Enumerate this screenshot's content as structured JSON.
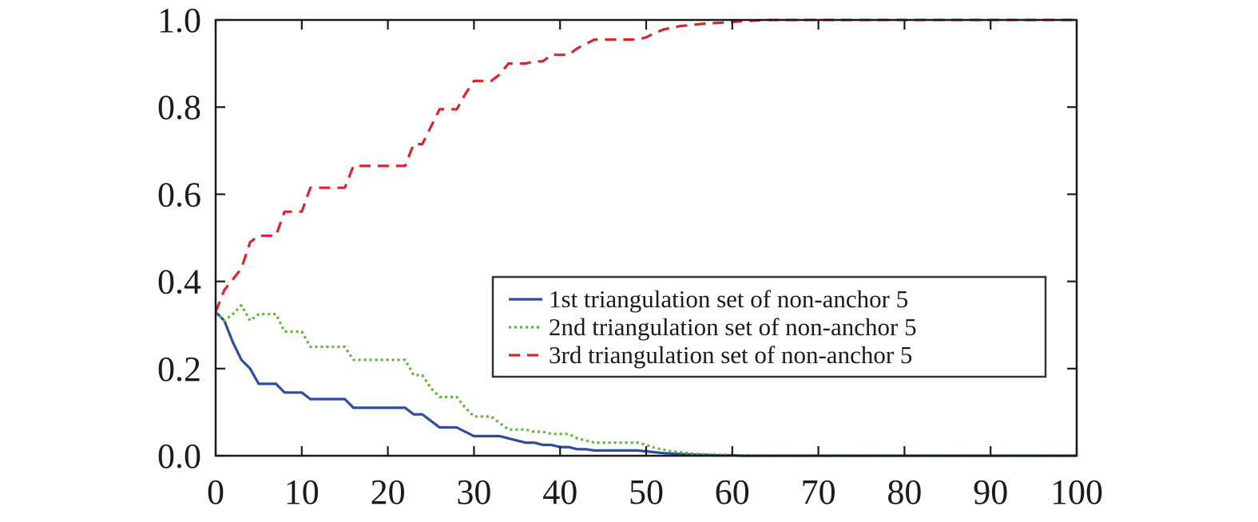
{
  "chart_data": {
    "type": "line",
    "title": "",
    "xlabel": "",
    "ylabel": "",
    "xlim": [
      0,
      100
    ],
    "ylim": [
      0,
      1.0
    ],
    "xticks": [
      0,
      10,
      20,
      30,
      40,
      50,
      60,
      70,
      80,
      90,
      100
    ],
    "yticks": [
      0.0,
      0.2,
      0.4,
      0.6,
      0.8,
      1.0
    ],
    "x_tick_labels": [
      "0",
      "10",
      "20",
      "30",
      "40",
      "50",
      "60",
      "70",
      "80",
      "90",
      "100"
    ],
    "y_tick_labels": [
      "0.0",
      "0.2",
      "0.4",
      "0.6",
      "0.8",
      "1.0"
    ],
    "grid": false,
    "legend_position": "center-right",
    "series": [
      {
        "name": "1st triangulation set of non-anchor 5",
        "color": "#2b4ea0",
        "style": "solid",
        "x": [
          0,
          1,
          2,
          3,
          4,
          5,
          6,
          7,
          8,
          9,
          10,
          11,
          12,
          13,
          14,
          15,
          16,
          17,
          18,
          19,
          20,
          21,
          22,
          23,
          24,
          25,
          26,
          27,
          28,
          29,
          30,
          31,
          32,
          33,
          34,
          35,
          36,
          37,
          38,
          39,
          40,
          41,
          42,
          43,
          44,
          45,
          46,
          47,
          48,
          49,
          50,
          51,
          52,
          53,
          54,
          55,
          56,
          57,
          58,
          59,
          60,
          61,
          62,
          63,
          64,
          65,
          70,
          80,
          90,
          100
        ],
        "y": [
          0.33,
          0.31,
          0.26,
          0.22,
          0.2,
          0.165,
          0.165,
          0.165,
          0.145,
          0.145,
          0.145,
          0.13,
          0.13,
          0.13,
          0.13,
          0.13,
          0.11,
          0.11,
          0.11,
          0.11,
          0.11,
          0.11,
          0.11,
          0.095,
          0.095,
          0.08,
          0.065,
          0.065,
          0.065,
          0.055,
          0.045,
          0.045,
          0.045,
          0.045,
          0.04,
          0.035,
          0.03,
          0.03,
          0.025,
          0.025,
          0.02,
          0.02,
          0.015,
          0.015,
          0.012,
          0.012,
          0.012,
          0.012,
          0.012,
          0.012,
          0.01,
          0.008,
          0.006,
          0.005,
          0.004,
          0.003,
          0.002,
          0.002,
          0.001,
          0.001,
          0.001,
          0.0,
          0.0,
          0.0,
          0.0,
          0.0,
          0.0,
          0.0,
          0.0,
          0.0
        ]
      },
      {
        "name": "2nd triangulation set of non-anchor 5",
        "color": "#5cb82e",
        "style": "dotted",
        "x": [
          0,
          1,
          2,
          3,
          4,
          5,
          6,
          7,
          8,
          9,
          10,
          11,
          12,
          13,
          14,
          15,
          16,
          17,
          18,
          19,
          20,
          21,
          22,
          23,
          24,
          25,
          26,
          27,
          28,
          29,
          30,
          31,
          32,
          33,
          34,
          35,
          36,
          37,
          38,
          39,
          40,
          41,
          42,
          43,
          44,
          45,
          46,
          47,
          48,
          49,
          50,
          51,
          52,
          53,
          54,
          55,
          56,
          57,
          58,
          59,
          60,
          61,
          62,
          63,
          64,
          65,
          70,
          80,
          90,
          100
        ],
        "y": [
          0.33,
          0.31,
          0.325,
          0.345,
          0.31,
          0.325,
          0.325,
          0.325,
          0.285,
          0.285,
          0.285,
          0.25,
          0.25,
          0.25,
          0.25,
          0.25,
          0.22,
          0.22,
          0.22,
          0.22,
          0.22,
          0.22,
          0.22,
          0.185,
          0.185,
          0.155,
          0.135,
          0.135,
          0.135,
          0.11,
          0.09,
          0.09,
          0.09,
          0.075,
          0.06,
          0.06,
          0.06,
          0.055,
          0.055,
          0.05,
          0.05,
          0.05,
          0.04,
          0.035,
          0.03,
          0.03,
          0.03,
          0.03,
          0.03,
          0.03,
          0.025,
          0.018,
          0.014,
          0.01,
          0.008,
          0.006,
          0.004,
          0.003,
          0.003,
          0.002,
          0.002,
          0.001,
          0.001,
          0.0,
          0.0,
          0.0,
          0.0,
          0.0,
          0.0,
          0.0
        ]
      },
      {
        "name": "3rd triangulation set of non-anchor 5",
        "color": "#d9262e",
        "style": "dashed",
        "x": [
          0,
          1,
          2,
          3,
          4,
          5,
          6,
          7,
          8,
          9,
          10,
          11,
          12,
          13,
          14,
          15,
          16,
          17,
          18,
          19,
          20,
          21,
          22,
          23,
          24,
          25,
          26,
          27,
          28,
          29,
          30,
          31,
          32,
          33,
          34,
          35,
          36,
          37,
          38,
          39,
          40,
          41,
          42,
          43,
          44,
          45,
          46,
          47,
          48,
          49,
          50,
          51,
          52,
          53,
          54,
          55,
          56,
          57,
          58,
          59,
          60,
          61,
          62,
          63,
          64,
          65,
          70,
          80,
          90,
          100
        ],
        "y": [
          0.33,
          0.38,
          0.405,
          0.43,
          0.49,
          0.505,
          0.505,
          0.505,
          0.56,
          0.56,
          0.56,
          0.615,
          0.615,
          0.615,
          0.615,
          0.615,
          0.665,
          0.665,
          0.665,
          0.665,
          0.665,
          0.665,
          0.665,
          0.715,
          0.715,
          0.755,
          0.795,
          0.795,
          0.795,
          0.83,
          0.86,
          0.86,
          0.86,
          0.875,
          0.9,
          0.9,
          0.9,
          0.905,
          0.905,
          0.92,
          0.92,
          0.92,
          0.935,
          0.945,
          0.955,
          0.955,
          0.955,
          0.955,
          0.955,
          0.955,
          0.96,
          0.97,
          0.978,
          0.982,
          0.986,
          0.988,
          0.99,
          0.992,
          0.993,
          0.994,
          0.995,
          0.997,
          0.998,
          0.999,
          1.0,
          1.0,
          1.0,
          1.0,
          1.0,
          1.0
        ]
      }
    ]
  }
}
